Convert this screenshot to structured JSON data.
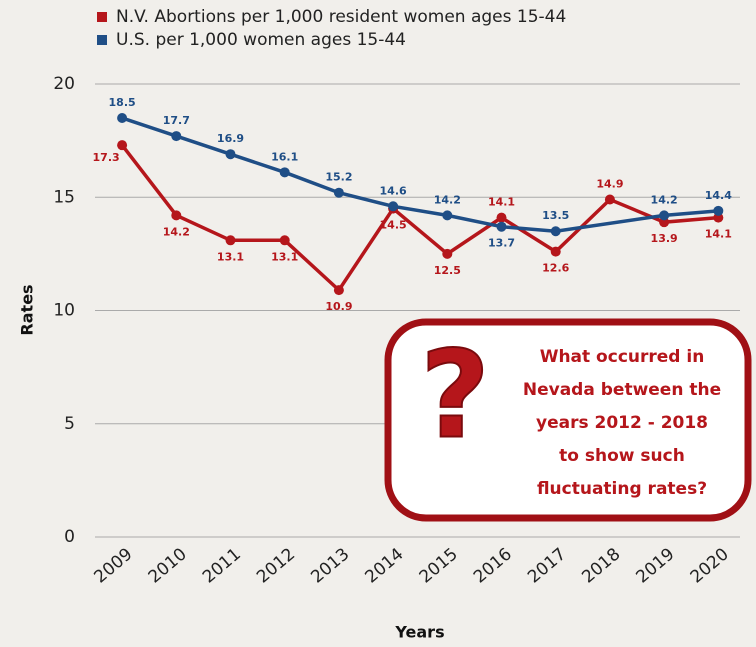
{
  "chart_data": {
    "type": "line",
    "x": [
      2009,
      2010,
      2011,
      2012,
      2013,
      2014,
      2015,
      2016,
      2017,
      2018,
      2019,
      2020
    ],
    "xlim": [
      2008.5,
      2020.4
    ],
    "xticks": [
      2009,
      2010,
      2011,
      2012,
      2013,
      2014,
      2015,
      2016,
      2017,
      2018,
      2019,
      2020
    ],
    "ylim": [
      0,
      20
    ],
    "yticks": [
      0,
      5,
      10,
      15,
      20
    ],
    "grid": true,
    "x_label": "Years",
    "y_label": "Rates",
    "series": [
      {
        "name": "N.V. Abortions per 1,000 resident women ages 15-44",
        "color": "#b5161b",
        "x": [
          2009,
          2010,
          2011,
          2012,
          2013,
          2014,
          2015,
          2016,
          2017,
          2018,
          2019,
          2020
        ],
        "values": [
          17.3,
          14.2,
          13.1,
          13.1,
          10.9,
          14.5,
          12.5,
          14.1,
          12.6,
          14.9,
          13.9,
          14.1
        ]
      },
      {
        "name": "U.S. per 1,000 women ages 15-44",
        "color": "#1f4e86",
        "x": [
          2009,
          2010,
          2011,
          2012,
          2013,
          2014,
          2015,
          2016,
          2017,
          2019,
          2020
        ],
        "values": [
          18.5,
          17.7,
          16.9,
          16.1,
          15.2,
          14.6,
          14.2,
          13.7,
          13.5,
          14.2,
          14.4
        ]
      }
    ],
    "annotation_icon": "?",
    "annotation": [
      "What occurred in",
      "Nevada between the",
      "years 2012 - 2018",
      "to show such",
      "fluctuating rates?"
    ]
  }
}
